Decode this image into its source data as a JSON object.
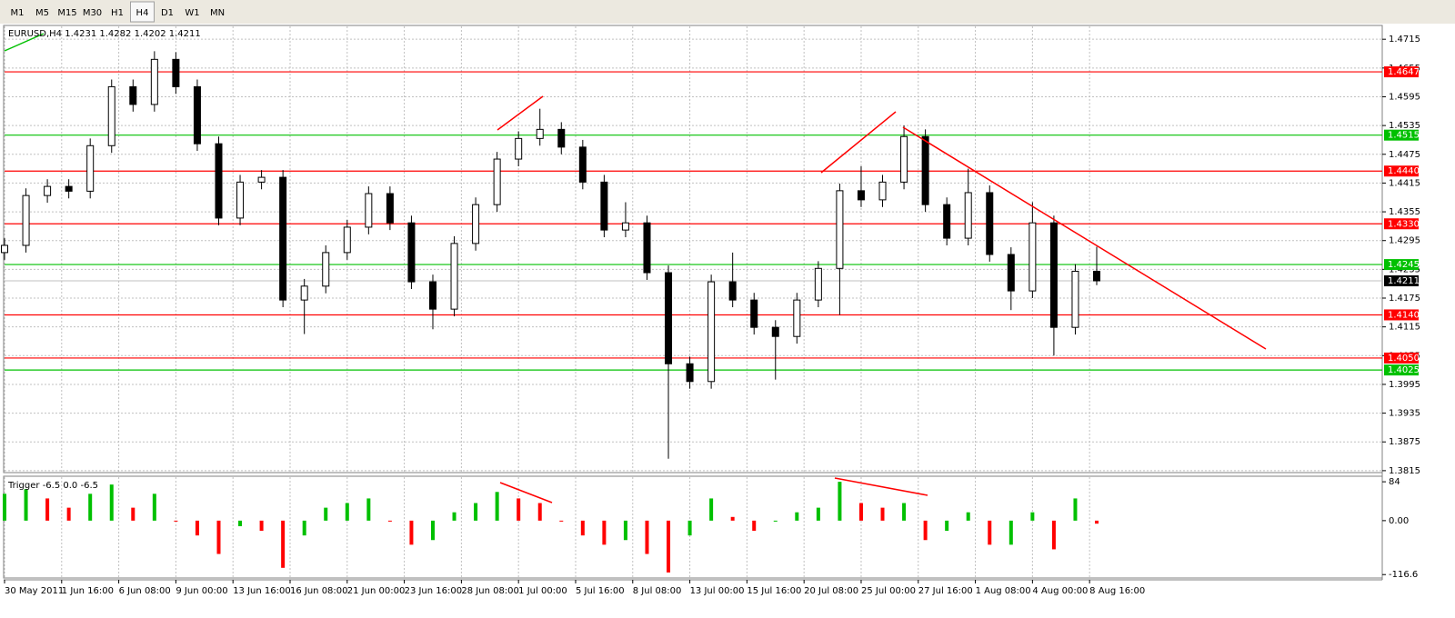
{
  "toolbar": {
    "buttons": [
      "M1",
      "M5",
      "M15",
      "M30",
      "H1",
      "H4",
      "D1",
      "W1",
      "MN"
    ],
    "active": 5
  },
  "chart_data": [
    {
      "type": "candlestick",
      "title": "EURUSD,H4",
      "x": [
        0,
        6,
        12,
        18,
        24,
        30,
        36,
        42,
        48,
        54,
        60,
        66,
        72,
        78,
        84,
        90,
        96,
        102,
        108,
        114,
        120,
        126,
        132,
        138,
        144,
        150,
        156,
        162,
        168,
        174,
        180,
        186,
        192,
        198,
        204,
        210,
        216,
        222,
        228,
        234,
        240,
        246,
        252,
        258,
        264,
        270,
        276,
        282,
        288,
        294,
        300,
        306
      ],
      "open": [
        1.427,
        1.4285,
        1.4389,
        1.4408,
        1.4398,
        1.4493,
        1.4616,
        1.4579,
        1.4673,
        1.4616,
        1.4497,
        1.4342,
        1.4417,
        1.4427,
        1.4171,
        1.42,
        1.427,
        1.4323,
        1.4393,
        1.4332,
        1.4209,
        1.4152,
        1.4289,
        1.437,
        1.4465,
        1.4508,
        1.4527,
        1.449,
        1.4417,
        1.4317,
        1.4332,
        1.4228,
        1.4038,
        1.4001,
        1.4209,
        1.4171,
        1.4114,
        1.4095,
        1.4171,
        1.4237,
        1.4399,
        1.438,
        1.4417,
        1.4512,
        1.437,
        1.43,
        1.4395,
        1.4266,
        1.419,
        1.4332,
        1.4114,
        1.4231
      ],
      "high": [
        1.43,
        1.4404,
        1.4423,
        1.4423,
        1.4508,
        1.4631,
        1.4631,
        1.469,
        1.4688,
        1.4631,
        1.4512,
        1.4432,
        1.4442,
        1.4442,
        1.4215,
        1.4285,
        1.4338,
        1.4408,
        1.4408,
        1.4347,
        1.4224,
        1.4304,
        1.4385,
        1.448,
        1.4523,
        1.457,
        1.4542,
        1.4505,
        1.4432,
        1.4375,
        1.4347,
        1.4243,
        1.4053,
        1.4224,
        1.427,
        1.4186,
        1.4129,
        1.4186,
        1.4252,
        1.4414,
        1.445,
        1.4432,
        1.4535,
        1.4527,
        1.4385,
        1.4445,
        1.441,
        1.4281,
        1.4375,
        1.4347,
        1.4246,
        1.4282
      ],
      "low": [
        1.4255,
        1.427,
        1.4374,
        1.4383,
        1.4383,
        1.4478,
        1.4564,
        1.4564,
        1.4601,
        1.4482,
        1.4327,
        1.4327,
        1.4402,
        1.4156,
        1.41,
        1.4185,
        1.4255,
        1.4308,
        1.4317,
        1.4194,
        1.411,
        1.4137,
        1.4274,
        1.4355,
        1.445,
        1.4493,
        1.4475,
        1.4402,
        1.4302,
        1.4302,
        1.4213,
        1.384,
        1.3986,
        1.3986,
        1.4156,
        1.4099,
        1.4005,
        1.408,
        1.4156,
        1.414,
        1.4365,
        1.4365,
        1.4402,
        1.4355,
        1.4285,
        1.4285,
        1.4251,
        1.415,
        1.4175,
        1.4055,
        1.4099,
        1.4202
      ],
      "close": [
        1.4285,
        1.4389,
        1.4408,
        1.4398,
        1.4493,
        1.4616,
        1.4579,
        1.4673,
        1.4616,
        1.4497,
        1.4342,
        1.4417,
        1.4427,
        1.4171,
        1.42,
        1.427,
        1.4323,
        1.4393,
        1.4332,
        1.4209,
        1.4152,
        1.4289,
        1.437,
        1.4465,
        1.4508,
        1.4527,
        1.449,
        1.4417,
        1.4317,
        1.4332,
        1.4228,
        1.4038,
        1.4001,
        1.4209,
        1.4171,
        1.4114,
        1.4095,
        1.4171,
        1.4237,
        1.4399,
        1.438,
        1.4417,
        1.4512,
        1.437,
        1.43,
        1.4395,
        1.4266,
        1.419,
        1.4332,
        1.4114,
        1.4231,
        1.4211
      ],
      "up_color": "#ffffff",
      "down_color": "#000000",
      "wick_color": "#000000",
      "xlim": [
        0,
        386
      ],
      "ylim": [
        1.3811,
        1.474
      ],
      "yticks": [
        1.4715,
        1.4655,
        1.4595,
        1.4535,
        1.4475,
        1.4415,
        1.4355,
        1.4295,
        1.4235,
        1.4175,
        1.4115,
        1.4055,
        1.3995,
        1.3935,
        1.3875,
        1.3815
      ],
      "xticks": [
        {
          "value": 0,
          "label": "30 May 2011"
        },
        {
          "value": 16,
          "label": "1 Jun 16:00"
        },
        {
          "value": 32,
          "label": "6 Jun 08:00"
        },
        {
          "value": 48,
          "label": "9 Jun 00:00"
        },
        {
          "value": 64,
          "label": "13 Jun 16:00"
        },
        {
          "value": 80,
          "label": "16 Jun 08:00"
        },
        {
          "value": 96,
          "label": "21 Jun 00:00"
        },
        {
          "value": 112,
          "label": "23 Jun 16:00"
        },
        {
          "value": 128,
          "label": "28 Jun 08:00"
        },
        {
          "value": 144,
          "label": "1 Jul 00:00"
        },
        {
          "value": 160,
          "label": "5 Jul 16:00"
        },
        {
          "value": 176,
          "label": "8 Jul 08:00"
        },
        {
          "value": 192,
          "label": "13 Jul 00:00"
        },
        {
          "value": 208,
          "label": "15 Jul 16:00"
        },
        {
          "value": 224,
          "label": "20 Jul 08:00"
        },
        {
          "value": 240,
          "label": "25 Jul 00:00"
        },
        {
          "value": 256,
          "label": "27 Jul 16:00"
        },
        {
          "value": 272,
          "label": "1 Aug 08:00"
        },
        {
          "value": 288,
          "label": "4 Aug 00:00"
        },
        {
          "value": 304,
          "label": "8 Aug 16:00"
        }
      ],
      "grid": true,
      "levels": [
        {
          "value": 1.4647,
          "color": "#ff0000"
        },
        {
          "value": 1.4515,
          "color": "#00c000"
        },
        {
          "value": 1.444,
          "label": "1.4440",
          "color": "#ff0000"
        },
        {
          "value": 1.433,
          "label": "1.4330",
          "color": "#ff0000"
        },
        {
          "value": 1.4245,
          "color": "#00c000"
        },
        {
          "value": 1.414,
          "label": "1.4140",
          "color": "#ff0000"
        },
        {
          "value": 1.405,
          "label": "1.4050",
          "color": "#ff0000"
        },
        {
          "value": 1.4025,
          "color": "#00c000"
        }
      ]
    },
    {
      "type": "histogram",
      "title": "Trigger",
      "header_values": [
        -6.5,
        {
          "value": 0,
          "label": "0.0"
        },
        -6.5
      ],
      "x": [
        0,
        6,
        12,
        18,
        24,
        30,
        36,
        42,
        48,
        54,
        60,
        66,
        72,
        78,
        84,
        90,
        96,
        102,
        108,
        114,
        120,
        126,
        132,
        138,
        144,
        150,
        156,
        162,
        168,
        174,
        180,
        186,
        192,
        198,
        204,
        210,
        216,
        222,
        228,
        234,
        240,
        246,
        252,
        258,
        264,
        270,
        276,
        282,
        288,
        294,
        300,
        306
      ],
      "values": [
        58,
        68,
        48,
        28,
        58,
        78,
        28,
        58,
        -2,
        -32,
        -72,
        -12,
        -22,
        -102,
        -32,
        28,
        38,
        48,
        -2,
        -52,
        -42,
        18,
        38,
        62,
        48,
        38,
        -2,
        -32,
        -52,
        -42,
        -72,
        -112,
        -32,
        48,
        8,
        -22,
        -2,
        18,
        28,
        84,
        38,
        28,
        38,
        -42,
        -22,
        18,
        -52,
        -52,
        18,
        -62,
        48,
        -6.5
      ],
      "up_color": "#00c000",
      "down_color": "#ff0000",
      "xlim": [
        0,
        386
      ],
      "ylim": [
        -124,
        96
      ],
      "yticks": [
        84,
        {
          "value": 0,
          "label": "0.00"
        },
        -116.6
      ]
    }
  ]
}
